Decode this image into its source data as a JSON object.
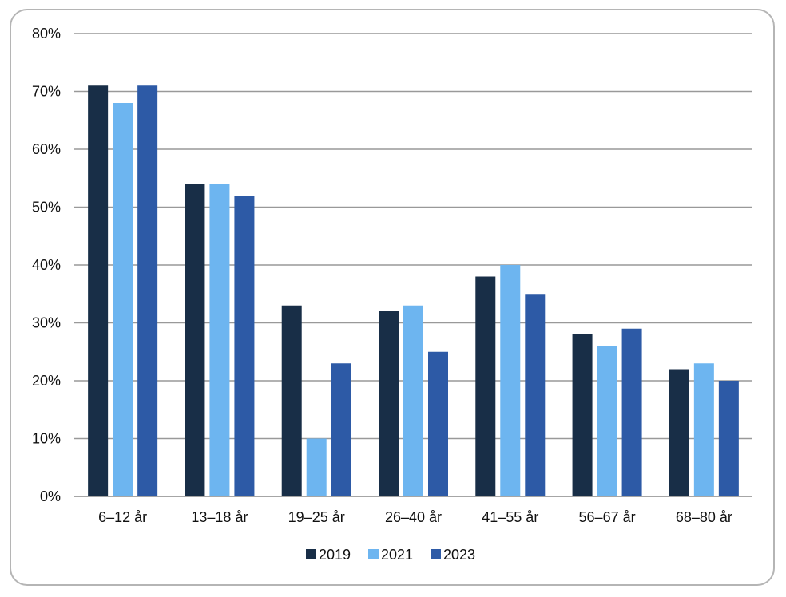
{
  "chart_data": {
    "type": "bar",
    "categories": [
      "6–12 år",
      "13–18 år",
      "19–25 år",
      "26–40 år",
      "41–55 år",
      "56–67 år",
      "68–80 år"
    ],
    "series": [
      {
        "name": "2019",
        "color": "#182e47",
        "values": [
          71,
          54,
          33,
          32,
          38,
          28,
          22
        ]
      },
      {
        "name": "2021",
        "color": "#6db5f0",
        "values": [
          68,
          54,
          10,
          33,
          40,
          26,
          23
        ]
      },
      {
        "name": "2023",
        "color": "#2d5aa6",
        "values": [
          71,
          52,
          23,
          25,
          35,
          29,
          20
        ]
      }
    ],
    "ylim": [
      0,
      80
    ],
    "yticks": [
      "0%",
      "10%",
      "20%",
      "30%",
      "40%",
      "50%",
      "60%",
      "70%",
      "80%"
    ],
    "grid": true,
    "legend_position": "bottom",
    "title": "",
    "xlabel": "",
    "ylabel": ""
  }
}
